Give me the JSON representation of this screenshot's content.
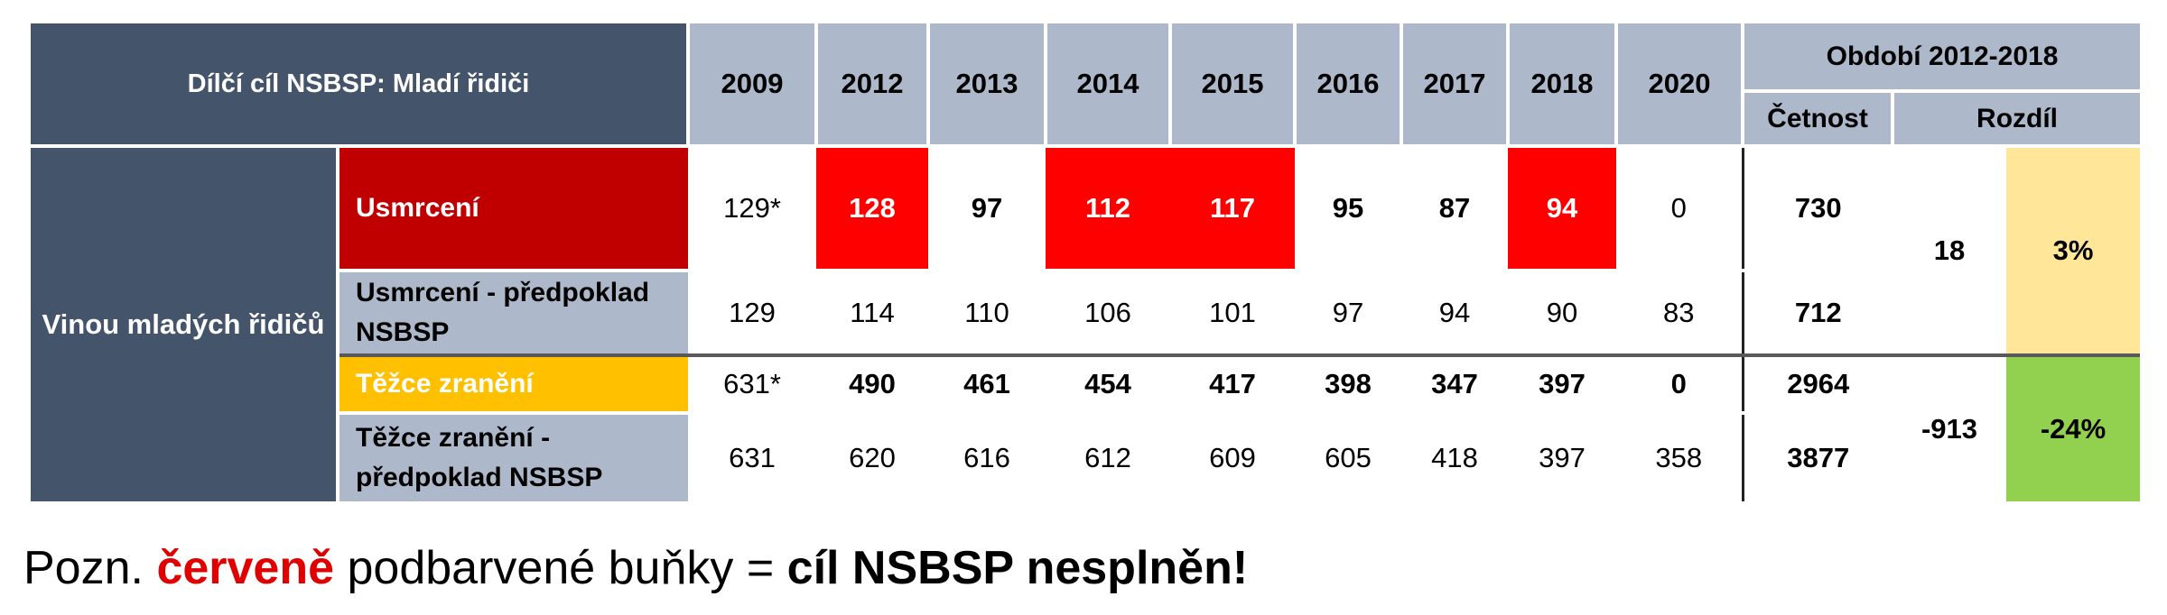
{
  "header": {
    "title": "Dílčí cíl NSBSP: Mladí řidiči",
    "years": [
      "2009",
      "2012",
      "2013",
      "2014",
      "2015",
      "2016",
      "2017",
      "2018",
      "2020"
    ],
    "period": "Období 2012-2018",
    "frequency": "Četnost",
    "difference": "Rozdíl"
  },
  "group_label": "Vinou mladých řidičů",
  "rows": [
    {
      "label": "Usmrcení",
      "values": [
        "129*",
        "128",
        "97",
        "112",
        "117",
        "95",
        "87",
        "94",
        "0"
      ],
      "frequency": "730"
    },
    {
      "label": "Usmrcení - předpoklad NSBSP",
      "values": [
        "129",
        "114",
        "110",
        "106",
        "101",
        "97",
        "94",
        "90",
        "83"
      ],
      "frequency": "712"
    },
    {
      "label": "Těžce zranění",
      "values": [
        "631*",
        "490",
        "461",
        "454",
        "417",
        "398",
        "347",
        "397",
        "0"
      ],
      "frequency": "2964"
    },
    {
      "label": "Těžce zranění - předpoklad NSBSP",
      "values": [
        "631",
        "620",
        "616",
        "612",
        "609",
        "605",
        "418",
        "397",
        "358"
      ],
      "frequency": "3877"
    }
  ],
  "killed_diff": {
    "absolute": "18",
    "percent": "3%"
  },
  "injured_diff": {
    "absolute": "-913",
    "percent": "-24%"
  },
  "note": {
    "prefix": "Pozn.",
    "red_word": "červeně",
    "middle": "podbarvené buňky =",
    "bold_end": "cíl NSBSP nesplněn!"
  },
  "colors": {
    "header_dark": "#44546a",
    "header_light": "#adb9ca",
    "unmet_red": "#ff0000",
    "killed_label": "#c00000",
    "injured_label": "#ffc000",
    "pct_yellow": "#ffe699",
    "pct_green": "#92d050"
  }
}
